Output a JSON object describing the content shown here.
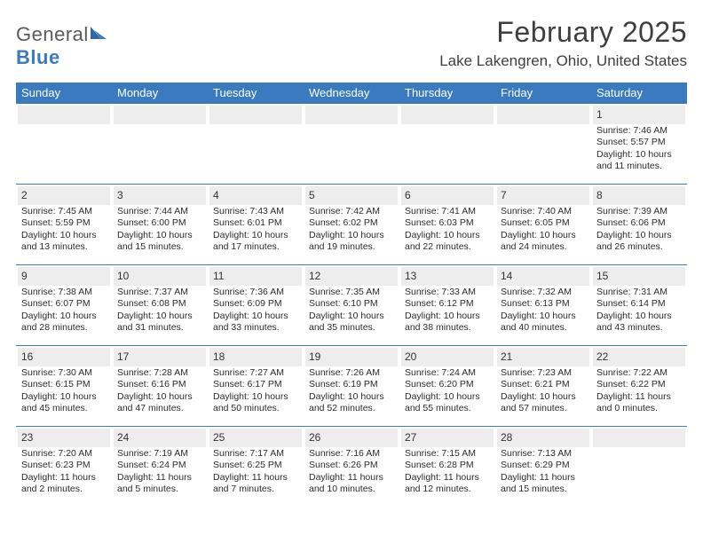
{
  "brand": {
    "word1": "General",
    "word2": "Blue"
  },
  "colors": {
    "accent": "#3a7abf",
    "text": "#3e3e3e",
    "header_bg": "#3a7abf",
    "header_text": "#ffffff",
    "daynum_bg": "#ededed"
  },
  "title": "February 2025",
  "location": "Lake Lakengren, Ohio, United States",
  "day_headers": [
    "Sunday",
    "Monday",
    "Tuesday",
    "Wednesday",
    "Thursday",
    "Friday",
    "Saturday"
  ],
  "weeks": [
    [
      {
        "n": "",
        "sr": "",
        "ss": "",
        "dl": ""
      },
      {
        "n": "",
        "sr": "",
        "ss": "",
        "dl": ""
      },
      {
        "n": "",
        "sr": "",
        "ss": "",
        "dl": ""
      },
      {
        "n": "",
        "sr": "",
        "ss": "",
        "dl": ""
      },
      {
        "n": "",
        "sr": "",
        "ss": "",
        "dl": ""
      },
      {
        "n": "",
        "sr": "",
        "ss": "",
        "dl": ""
      },
      {
        "n": "1",
        "sr": "Sunrise: 7:46 AM",
        "ss": "Sunset: 5:57 PM",
        "dl": "Daylight: 10 hours and 11 minutes."
      }
    ],
    [
      {
        "n": "2",
        "sr": "Sunrise: 7:45 AM",
        "ss": "Sunset: 5:59 PM",
        "dl": "Daylight: 10 hours and 13 minutes."
      },
      {
        "n": "3",
        "sr": "Sunrise: 7:44 AM",
        "ss": "Sunset: 6:00 PM",
        "dl": "Daylight: 10 hours and 15 minutes."
      },
      {
        "n": "4",
        "sr": "Sunrise: 7:43 AM",
        "ss": "Sunset: 6:01 PM",
        "dl": "Daylight: 10 hours and 17 minutes."
      },
      {
        "n": "5",
        "sr": "Sunrise: 7:42 AM",
        "ss": "Sunset: 6:02 PM",
        "dl": "Daylight: 10 hours and 19 minutes."
      },
      {
        "n": "6",
        "sr": "Sunrise: 7:41 AM",
        "ss": "Sunset: 6:03 PM",
        "dl": "Daylight: 10 hours and 22 minutes."
      },
      {
        "n": "7",
        "sr": "Sunrise: 7:40 AM",
        "ss": "Sunset: 6:05 PM",
        "dl": "Daylight: 10 hours and 24 minutes."
      },
      {
        "n": "8",
        "sr": "Sunrise: 7:39 AM",
        "ss": "Sunset: 6:06 PM",
        "dl": "Daylight: 10 hours and 26 minutes."
      }
    ],
    [
      {
        "n": "9",
        "sr": "Sunrise: 7:38 AM",
        "ss": "Sunset: 6:07 PM",
        "dl": "Daylight: 10 hours and 28 minutes."
      },
      {
        "n": "10",
        "sr": "Sunrise: 7:37 AM",
        "ss": "Sunset: 6:08 PM",
        "dl": "Daylight: 10 hours and 31 minutes."
      },
      {
        "n": "11",
        "sr": "Sunrise: 7:36 AM",
        "ss": "Sunset: 6:09 PM",
        "dl": "Daylight: 10 hours and 33 minutes."
      },
      {
        "n": "12",
        "sr": "Sunrise: 7:35 AM",
        "ss": "Sunset: 6:10 PM",
        "dl": "Daylight: 10 hours and 35 minutes."
      },
      {
        "n": "13",
        "sr": "Sunrise: 7:33 AM",
        "ss": "Sunset: 6:12 PM",
        "dl": "Daylight: 10 hours and 38 minutes."
      },
      {
        "n": "14",
        "sr": "Sunrise: 7:32 AM",
        "ss": "Sunset: 6:13 PM",
        "dl": "Daylight: 10 hours and 40 minutes."
      },
      {
        "n": "15",
        "sr": "Sunrise: 7:31 AM",
        "ss": "Sunset: 6:14 PM",
        "dl": "Daylight: 10 hours and 43 minutes."
      }
    ],
    [
      {
        "n": "16",
        "sr": "Sunrise: 7:30 AM",
        "ss": "Sunset: 6:15 PM",
        "dl": "Daylight: 10 hours and 45 minutes."
      },
      {
        "n": "17",
        "sr": "Sunrise: 7:28 AM",
        "ss": "Sunset: 6:16 PM",
        "dl": "Daylight: 10 hours and 47 minutes."
      },
      {
        "n": "18",
        "sr": "Sunrise: 7:27 AM",
        "ss": "Sunset: 6:17 PM",
        "dl": "Daylight: 10 hours and 50 minutes."
      },
      {
        "n": "19",
        "sr": "Sunrise: 7:26 AM",
        "ss": "Sunset: 6:19 PM",
        "dl": "Daylight: 10 hours and 52 minutes."
      },
      {
        "n": "20",
        "sr": "Sunrise: 7:24 AM",
        "ss": "Sunset: 6:20 PM",
        "dl": "Daylight: 10 hours and 55 minutes."
      },
      {
        "n": "21",
        "sr": "Sunrise: 7:23 AM",
        "ss": "Sunset: 6:21 PM",
        "dl": "Daylight: 10 hours and 57 minutes."
      },
      {
        "n": "22",
        "sr": "Sunrise: 7:22 AM",
        "ss": "Sunset: 6:22 PM",
        "dl": "Daylight: 11 hours and 0 minutes."
      }
    ],
    [
      {
        "n": "23",
        "sr": "Sunrise: 7:20 AM",
        "ss": "Sunset: 6:23 PM",
        "dl": "Daylight: 11 hours and 2 minutes."
      },
      {
        "n": "24",
        "sr": "Sunrise: 7:19 AM",
        "ss": "Sunset: 6:24 PM",
        "dl": "Daylight: 11 hours and 5 minutes."
      },
      {
        "n": "25",
        "sr": "Sunrise: 7:17 AM",
        "ss": "Sunset: 6:25 PM",
        "dl": "Daylight: 11 hours and 7 minutes."
      },
      {
        "n": "26",
        "sr": "Sunrise: 7:16 AM",
        "ss": "Sunset: 6:26 PM",
        "dl": "Daylight: 11 hours and 10 minutes."
      },
      {
        "n": "27",
        "sr": "Sunrise: 7:15 AM",
        "ss": "Sunset: 6:28 PM",
        "dl": "Daylight: 11 hours and 12 minutes."
      },
      {
        "n": "28",
        "sr": "Sunrise: 7:13 AM",
        "ss": "Sunset: 6:29 PM",
        "dl": "Daylight: 11 hours and 15 minutes."
      },
      {
        "n": "",
        "sr": "",
        "ss": "",
        "dl": ""
      }
    ]
  ]
}
